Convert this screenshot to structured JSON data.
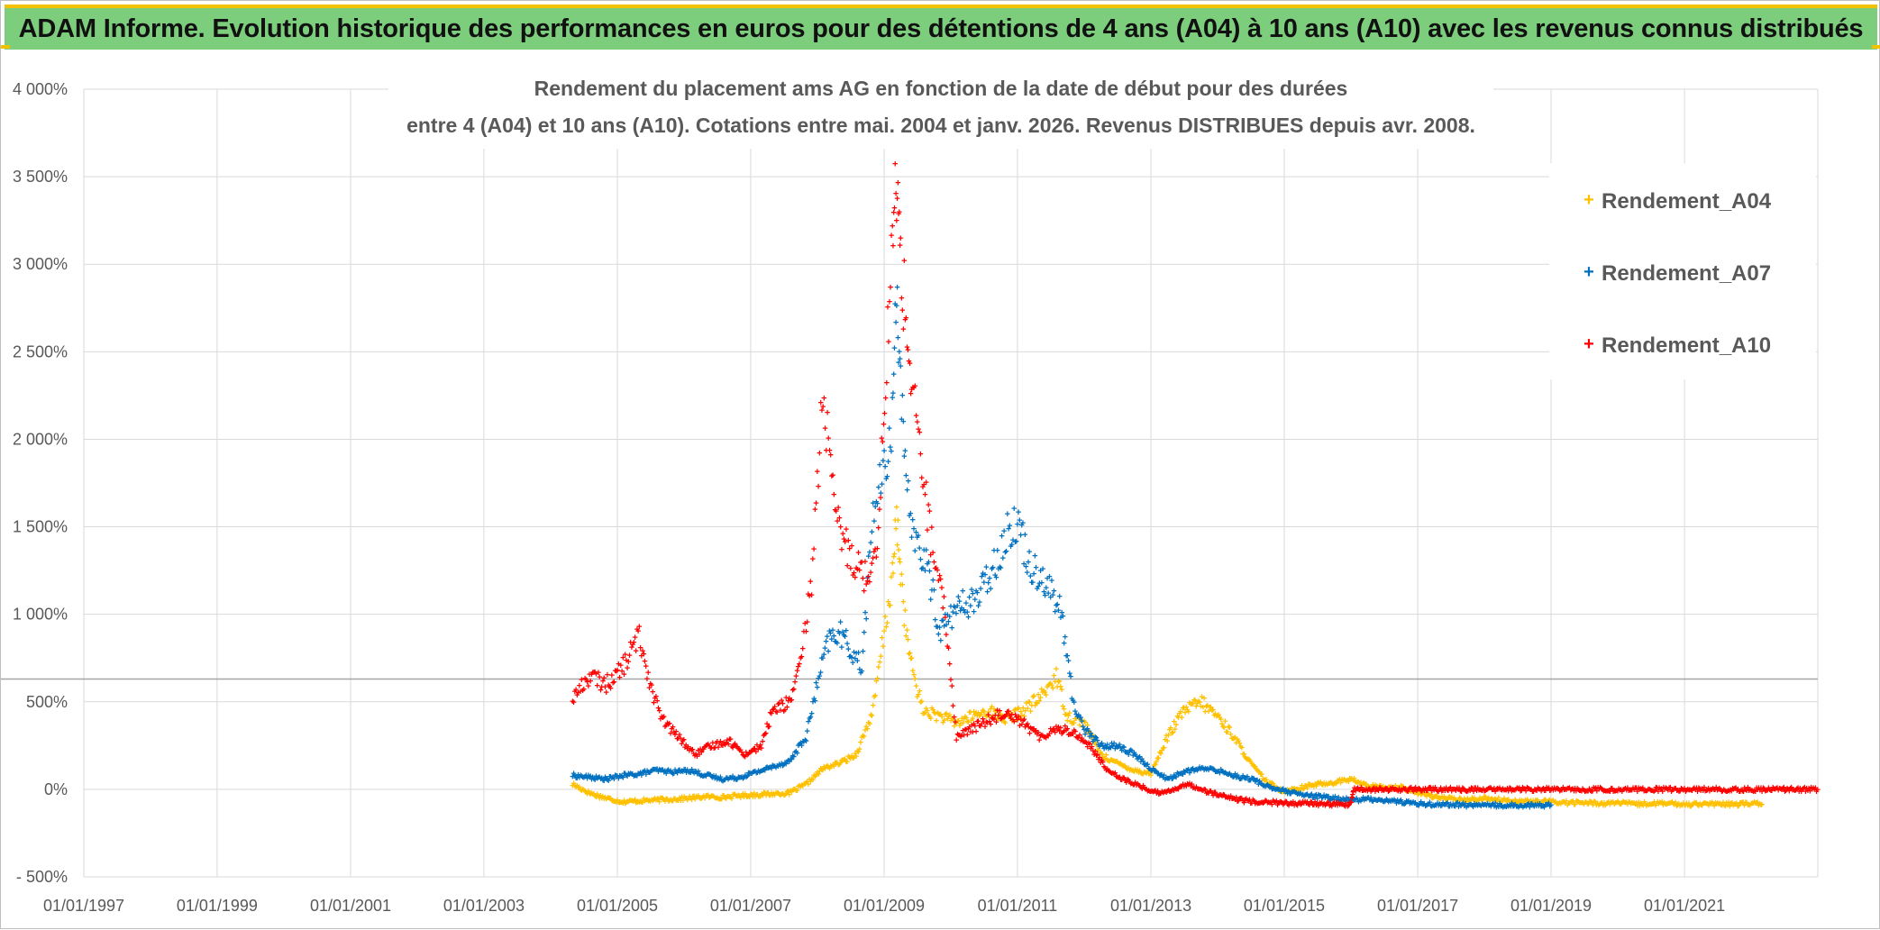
{
  "banner": {
    "title": "ADAM Informe. Evolution historique des performances en euros pour des détentions de 4 ans (A04) à 10 ans (A10) avec les revenus connus distribués"
  },
  "colors": {
    "banner_bg": "#7ccd7c",
    "banner_accent": "#f2c200",
    "gridline": "#d9d9d9",
    "refline": "#a6a6a6"
  },
  "chart_data": {
    "type": "scatter",
    "title_lines": [
      "Rendement du placement ams AG en fonction de la date de début pour des durées",
      "entre 4 (A04) et 10 ans (A10). Cotations entre mai. 2004 et janv. 2026. Revenus DISTRIBUES depuis avr. 2008."
    ],
    "xlabel": "",
    "ylabel": "",
    "x_axis": {
      "type": "date",
      "range": [
        "1997-01-01",
        "2023-01-01"
      ],
      "tick_labels": [
        "01/01/1997",
        "01/01/1999",
        "01/01/2001",
        "01/01/2003",
        "01/01/2005",
        "01/01/2007",
        "01/01/2009",
        "01/01/2011",
        "01/01/2013",
        "01/01/2015",
        "01/01/2017",
        "01/01/2019",
        "01/01/2021"
      ]
    },
    "y_axis": {
      "unit": "percent",
      "range": [
        -500,
        4000
      ],
      "ticks": [
        -500,
        0,
        500,
        1000,
        1500,
        2000,
        2500,
        3000,
        3500,
        4000
      ],
      "tick_labels": [
        "- 500%",
        "0%",
        "500%",
        "1 000%",
        "1 500%",
        "2 000%",
        "2 500%",
        "3 000%",
        "3 500%",
        "4 000%"
      ]
    },
    "grid": true,
    "reference_line_y": 630,
    "legend_position": "top-right",
    "marker": "+",
    "series": [
      {
        "name": "Rendement_A04",
        "color": "#ffc000",
        "points": [
          [
            "2004-05-01",
            30
          ],
          [
            "2004-08-01",
            -20
          ],
          [
            "2004-11-01",
            -50
          ],
          [
            "2005-02-01",
            -70
          ],
          [
            "2005-05-01",
            -65
          ],
          [
            "2005-08-01",
            -60
          ],
          [
            "2005-11-01",
            -55
          ],
          [
            "2006-02-01",
            -50
          ],
          [
            "2006-05-01",
            -40
          ],
          [
            "2006-08-01",
            -45
          ],
          [
            "2006-11-01",
            -35
          ],
          [
            "2007-02-01",
            -30
          ],
          [
            "2007-05-01",
            -25
          ],
          [
            "2007-08-01",
            -20
          ],
          [
            "2007-11-01",
            30
          ],
          [
            "2008-02-01",
            120
          ],
          [
            "2008-05-01",
            150
          ],
          [
            "2008-08-01",
            200
          ],
          [
            "2008-11-01",
            450
          ],
          [
            "2009-01-01",
            900
          ],
          [
            "2009-02-15",
            1200
          ],
          [
            "2009-03-10",
            1550
          ],
          [
            "2009-04-01",
            1250
          ],
          [
            "2009-05-01",
            900
          ],
          [
            "2009-06-01",
            700
          ],
          [
            "2009-08-01",
            450
          ],
          [
            "2009-11-01",
            420
          ],
          [
            "2010-02-01",
            380
          ],
          [
            "2010-05-01",
            420
          ],
          [
            "2010-08-01",
            450
          ],
          [
            "2010-11-01",
            400
          ],
          [
            "2011-02-01",
            450
          ],
          [
            "2011-05-01",
            520
          ],
          [
            "2011-08-01",
            650
          ],
          [
            "2011-10-01",
            420
          ],
          [
            "2012-01-01",
            380
          ],
          [
            "2012-04-01",
            200
          ],
          [
            "2012-07-01",
            150
          ],
          [
            "2012-10-01",
            110
          ],
          [
            "2013-01-01",
            90
          ],
          [
            "2013-04-01",
            300
          ],
          [
            "2013-07-01",
            450
          ],
          [
            "2013-10-01",
            500
          ],
          [
            "2014-01-01",
            420
          ],
          [
            "2014-04-01",
            300
          ],
          [
            "2014-07-01",
            150
          ],
          [
            "2014-10-01",
            40
          ],
          [
            "2015-01-01",
            -10
          ],
          [
            "2015-04-01",
            10
          ],
          [
            "2015-07-01",
            30
          ],
          [
            "2015-10-01",
            40
          ],
          [
            "2016-01-01",
            60
          ],
          [
            "2016-04-01",
            20
          ],
          [
            "2016-07-01",
            10
          ],
          [
            "2016-10-01",
            15
          ],
          [
            "2017-01-01",
            -20
          ],
          [
            "2017-04-01",
            -40
          ],
          [
            "2017-07-01",
            -55
          ],
          [
            "2017-10-01",
            -60
          ],
          [
            "2018-01-01",
            -50
          ],
          [
            "2018-04-01",
            -60
          ],
          [
            "2018-07-01",
            -65
          ],
          [
            "2018-10-01",
            -70
          ],
          [
            "2019-01-01",
            -70
          ],
          [
            "2019-04-01",
            -75
          ],
          [
            "2019-07-01",
            -75
          ],
          [
            "2019-10-01",
            -80
          ],
          [
            "2020-01-01",
            -75
          ],
          [
            "2020-04-01",
            -85
          ],
          [
            "2020-07-01",
            -80
          ],
          [
            "2020-10-01",
            -80
          ],
          [
            "2021-01-01",
            -85
          ],
          [
            "2021-04-01",
            -80
          ],
          [
            "2021-07-01",
            -85
          ],
          [
            "2021-10-01",
            -85
          ],
          [
            "2022-01-01",
            -80
          ],
          [
            "2022-03-01",
            -85
          ]
        ]
      },
      {
        "name": "Rendement_A07",
        "color": "#0070c0",
        "points": [
          [
            "2004-05-01",
            80
          ],
          [
            "2004-08-01",
            70
          ],
          [
            "2004-11-01",
            60
          ],
          [
            "2005-02-01",
            80
          ],
          [
            "2005-05-01",
            90
          ],
          [
            "2005-08-01",
            110
          ],
          [
            "2005-11-01",
            100
          ],
          [
            "2006-02-01",
            110
          ],
          [
            "2006-05-01",
            80
          ],
          [
            "2006-08-01",
            60
          ],
          [
            "2006-11-01",
            70
          ],
          [
            "2007-02-01",
            100
          ],
          [
            "2007-05-01",
            130
          ],
          [
            "2007-08-01",
            160
          ],
          [
            "2007-11-01",
            300
          ],
          [
            "2008-01-01",
            600
          ],
          [
            "2008-03-01",
            850
          ],
          [
            "2008-05-01",
            900
          ],
          [
            "2008-07-01",
            800
          ],
          [
            "2008-09-01",
            700
          ],
          [
            "2008-11-01",
            1600
          ],
          [
            "2009-01-01",
            1800
          ],
          [
            "2009-02-15",
            2100
          ],
          [
            "2009-03-10",
            2950
          ],
          [
            "2009-04-01",
            2300
          ],
          [
            "2009-05-01",
            1700
          ],
          [
            "2009-07-01",
            1400
          ],
          [
            "2009-09-01",
            1250
          ],
          [
            "2009-11-01",
            900
          ],
          [
            "2010-01-01",
            1000
          ],
          [
            "2010-03-01",
            1050
          ],
          [
            "2010-06-01",
            1100
          ],
          [
            "2010-09-01",
            1300
          ],
          [
            "2010-11-01",
            1450
          ],
          [
            "2011-01-01",
            1550
          ],
          [
            "2011-03-01",
            1300
          ],
          [
            "2011-06-01",
            1200
          ],
          [
            "2011-09-01",
            1000
          ],
          [
            "2011-11-01",
            500
          ],
          [
            "2012-01-01",
            350
          ],
          [
            "2012-04-01",
            250
          ],
          [
            "2012-07-01",
            250
          ],
          [
            "2012-10-01",
            200
          ],
          [
            "2013-01-01",
            120
          ],
          [
            "2013-04-01",
            60
          ],
          [
            "2013-07-01",
            100
          ],
          [
            "2013-10-01",
            120
          ],
          [
            "2014-01-01",
            110
          ],
          [
            "2014-04-01",
            80
          ],
          [
            "2014-07-01",
            60
          ],
          [
            "2014-10-01",
            20
          ],
          [
            "2015-01-01",
            -10
          ],
          [
            "2015-04-01",
            -30
          ],
          [
            "2015-07-01",
            -40
          ],
          [
            "2015-10-01",
            -50
          ],
          [
            "2016-01-01",
            -60
          ],
          [
            "2016-04-01",
            -55
          ],
          [
            "2016-07-01",
            -60
          ],
          [
            "2016-10-01",
            -70
          ],
          [
            "2017-01-01",
            -80
          ],
          [
            "2017-04-01",
            -85
          ],
          [
            "2017-07-01",
            -85
          ],
          [
            "2017-10-01",
            -90
          ],
          [
            "2018-01-01",
            -88
          ],
          [
            "2018-04-01",
            -90
          ],
          [
            "2018-07-01",
            -90
          ],
          [
            "2018-10-01",
            -90
          ],
          [
            "2019-01-01",
            -88
          ]
        ]
      },
      {
        "name": "Rendement_A10",
        "color": "#ff0000",
        "points": [
          [
            "2004-05-01",
            520
          ],
          [
            "2004-08-01",
            650
          ],
          [
            "2004-11-01",
            600
          ],
          [
            "2005-02-01",
            700
          ],
          [
            "2005-05-01",
            880
          ],
          [
            "2005-07-01",
            600
          ],
          [
            "2005-09-01",
            400
          ],
          [
            "2005-12-01",
            300
          ],
          [
            "2006-03-01",
            200
          ],
          [
            "2006-06-01",
            250
          ],
          [
            "2006-09-01",
            280
          ],
          [
            "2006-12-01",
            200
          ],
          [
            "2007-03-01",
            250
          ],
          [
            "2007-05-01",
            450
          ],
          [
            "2007-08-01",
            500
          ],
          [
            "2007-10-01",
            700
          ],
          [
            "2007-12-01",
            1200
          ],
          [
            "2008-02-01",
            2300
          ],
          [
            "2008-04-01",
            1600
          ],
          [
            "2008-06-01",
            1400
          ],
          [
            "2008-08-01",
            1300
          ],
          [
            "2008-10-01",
            1200
          ],
          [
            "2008-12-01",
            1500
          ],
          [
            "2009-01-15",
            2500
          ],
          [
            "2009-02-15",
            3100
          ],
          [
            "2009-03-10",
            3500
          ],
          [
            "2009-04-01",
            3000
          ],
          [
            "2009-05-01",
            2700
          ],
          [
            "2009-06-01",
            2300
          ],
          [
            "2009-08-01",
            1800
          ],
          [
            "2009-10-01",
            1300
          ],
          [
            "2009-12-01",
            1000
          ],
          [
            "2010-02-01",
            300
          ],
          [
            "2010-05-01",
            350
          ],
          [
            "2010-08-01",
            400
          ],
          [
            "2010-11-01",
            450
          ],
          [
            "2011-02-01",
            380
          ],
          [
            "2011-05-01",
            300
          ],
          [
            "2011-08-01",
            350
          ],
          [
            "2011-11-01",
            330
          ],
          [
            "2012-02-01",
            250
          ],
          [
            "2012-05-01",
            120
          ],
          [
            "2012-08-01",
            60
          ],
          [
            "2012-11-01",
            20
          ],
          [
            "2013-02-01",
            -20
          ],
          [
            "2013-05-01",
            0
          ],
          [
            "2013-08-01",
            30
          ],
          [
            "2013-11-01",
            -10
          ],
          [
            "2014-02-01",
            -40
          ],
          [
            "2014-05-01",
            -60
          ],
          [
            "2014-08-01",
            -70
          ],
          [
            "2014-11-01",
            -75
          ],
          [
            "2015-02-01",
            -80
          ],
          [
            "2015-05-01",
            -80
          ],
          [
            "2015-08-01",
            -82
          ],
          [
            "2015-11-01",
            -85
          ],
          [
            "2016-01-01",
            -85
          ],
          [
            "2016-01-15",
            0
          ],
          [
            "2017-01-01",
            0
          ],
          [
            "2018-01-01",
            0
          ],
          [
            "2019-01-01",
            0
          ],
          [
            "2020-01-01",
            0
          ],
          [
            "2021-01-01",
            0
          ],
          [
            "2022-01-01",
            0
          ],
          [
            "2022-12-31",
            0
          ]
        ]
      }
    ]
  }
}
